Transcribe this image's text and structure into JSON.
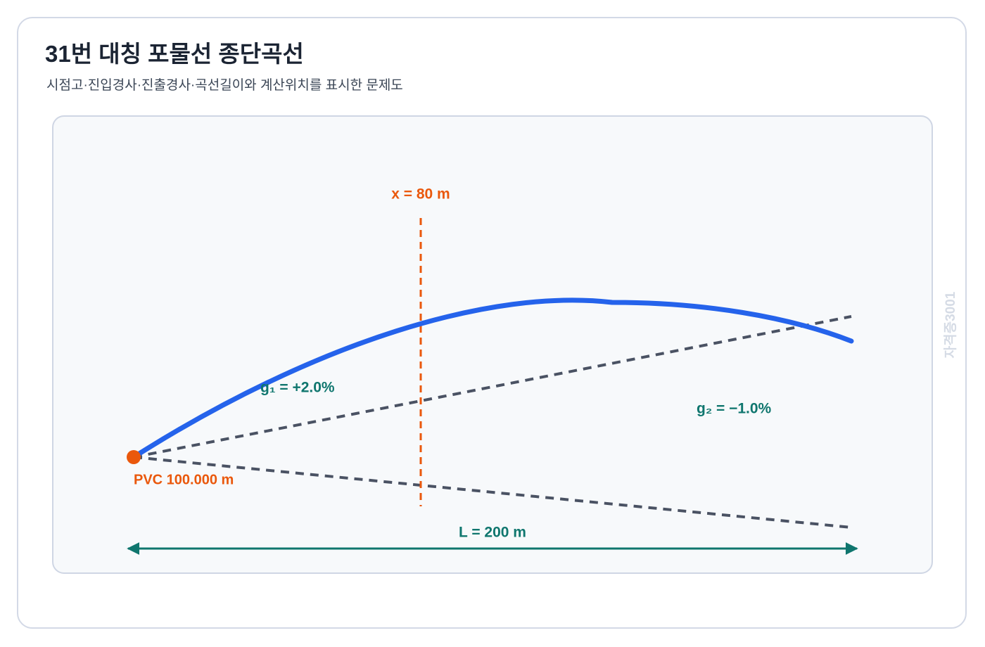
{
  "header": {
    "title": "31번 대칭 포물선 종단곡선",
    "subtitle": "시점고·진입경사·진출경사·곡선길이와 계산위치를 표시한 문제도"
  },
  "diagram": {
    "x_label": "x = 80 m",
    "g1_label": "g₁ = +2.0%",
    "g2_label": "g₂ = −1.0%",
    "pvc_label": "PVC 100.000 m",
    "length_label": "L = 200 m",
    "watermark": "자격증3001"
  }
}
